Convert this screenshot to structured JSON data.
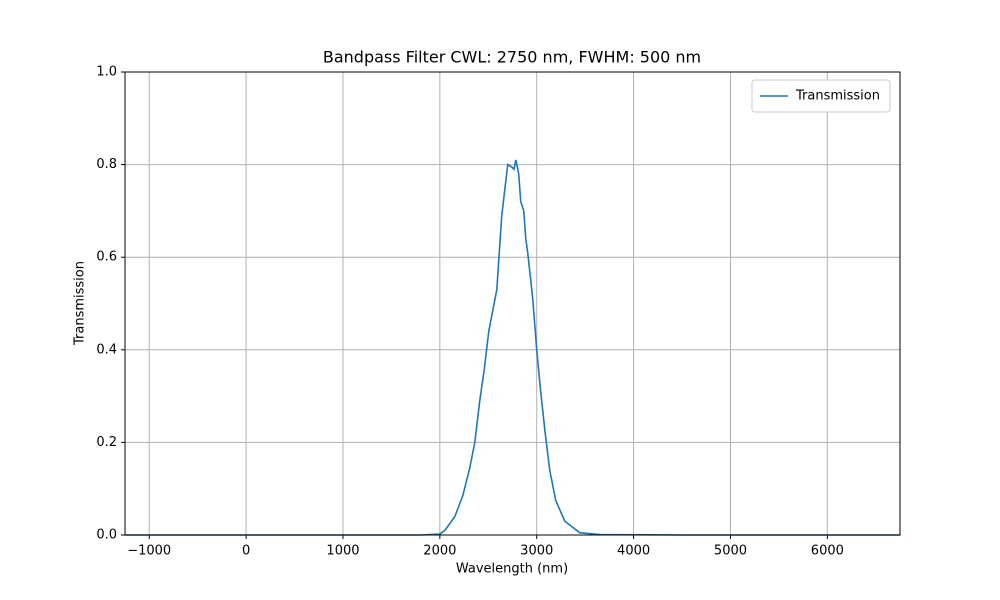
{
  "chart_data": {
    "type": "line",
    "title": "Bandpass Filter CWL: 2750 nm, FWHM: 500 nm",
    "xlabel": "Wavelength (nm)",
    "ylabel": "Transmission",
    "x": [
      -1250,
      1000,
      1800,
      2000,
      2052,
      2155,
      2237,
      2309,
      2361,
      2412,
      2460,
      2505,
      2588,
      2639,
      2701,
      2740,
      2765,
      2784,
      2814,
      2835,
      2866,
      2887,
      2907,
      2959,
      3000,
      3041,
      3082,
      3134,
      3196,
      3289,
      3443,
      3650,
      4500,
      6750
    ],
    "series": [
      {
        "name": "Transmission",
        "color": "#1f77b4",
        "values": [
          0,
          0,
          0,
          0.002,
          0.01,
          0.04,
          0.085,
          0.145,
          0.2,
          0.29,
          0.36,
          0.44,
          0.53,
          0.69,
          0.8,
          0.795,
          0.79,
          0.81,
          0.78,
          0.72,
          0.7,
          0.64,
          0.61,
          0.51,
          0.4,
          0.31,
          0.23,
          0.14,
          0.075,
          0.03,
          0.005,
          0.001,
          0,
          0
        ]
      }
    ],
    "xlim": [
      -1250,
      6750
    ],
    "ylim": [
      0,
      1
    ],
    "xticks": [
      {
        "value": -1000,
        "label": "−1000"
      },
      0,
      1000,
      2000,
      3000,
      4000,
      5000,
      6000
    ],
    "yticks": [
      {
        "value": 0,
        "label": "0.0"
      },
      {
        "value": 0.2,
        "label": "0.2"
      },
      {
        "value": 0.4,
        "label": "0.4"
      },
      {
        "value": 0.6,
        "label": "0.6"
      },
      {
        "value": 0.8,
        "label": "0.8"
      },
      {
        "value": 1,
        "label": "1.0"
      }
    ],
    "grid": true,
    "legend": "upper right"
  }
}
